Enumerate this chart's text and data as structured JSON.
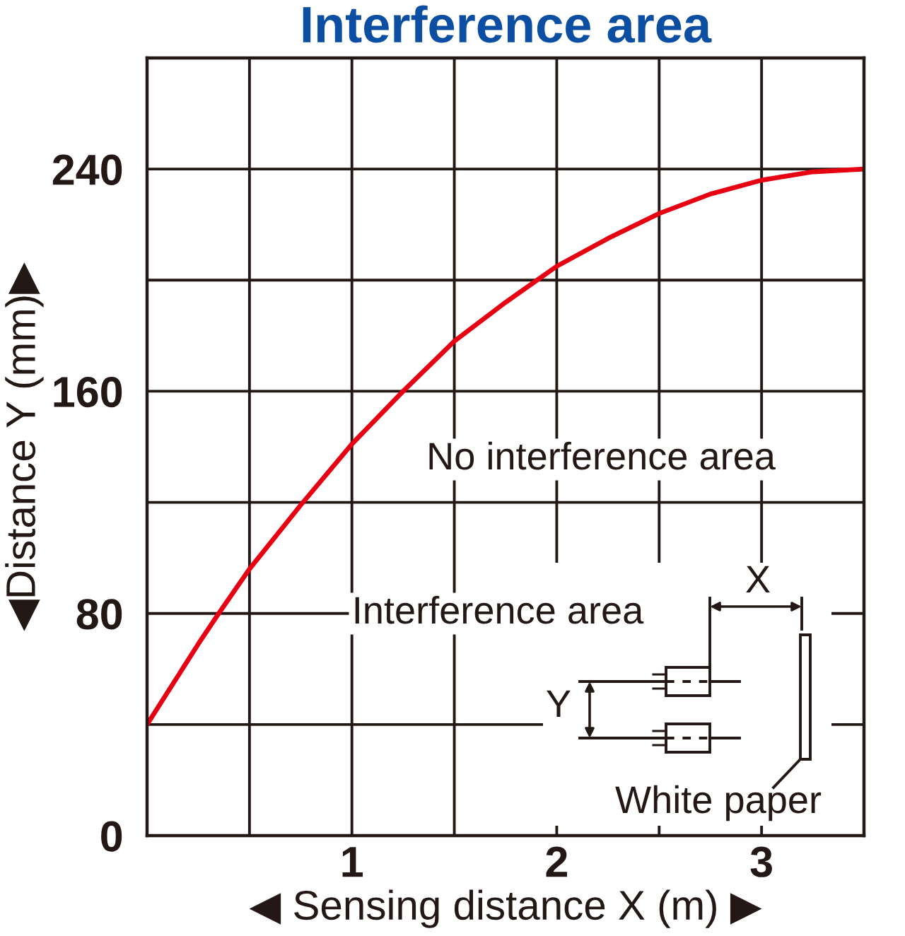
{
  "chart_data": {
    "type": "line",
    "title": "Interference area",
    "xlabel": "◀ Sensing distance X (m) ▶",
    "ylabel": "◀Distance Y (mm)▶",
    "series": [
      {
        "color": "#e60012",
        "x": [
          0,
          0.25,
          0.35,
          0.5,
          0.75,
          1.0,
          1.25,
          1.5,
          1.75,
          2.0,
          2.25,
          2.5,
          2.75,
          3.0,
          3.25,
          3.5
        ],
        "values": [
          40,
          69,
          80,
          96,
          119,
          141,
          160,
          178,
          192,
          205,
          215,
          224,
          231,
          236,
          239,
          240
        ]
      }
    ],
    "xlim": [
      0,
      3.5
    ],
    "ylim": [
      0,
      280
    ],
    "xticks": [
      {
        "value": 0.5,
        "label": null
      },
      1,
      {
        "value": 1.5,
        "label": null
      },
      2,
      {
        "value": 2.5,
        "label": null
      },
      3
    ],
    "yticks": [
      0,
      {
        "value": 40,
        "label": null
      },
      80,
      {
        "value": 120,
        "label": null
      },
      160,
      {
        "value": 200,
        "label": null
      },
      240
    ],
    "grid": true,
    "marker": "none",
    "line_style": "solid",
    "annotations": [
      "No interference area",
      "Interference area",
      "X",
      "Y",
      "White paper"
    ]
  }
}
